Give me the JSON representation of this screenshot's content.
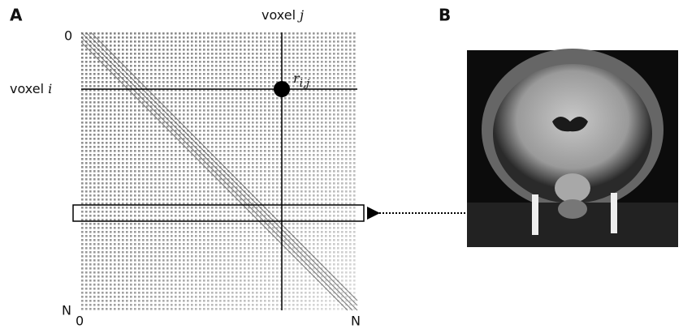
{
  "panel_a": {
    "label": "A",
    "column_label": {
      "text": "voxel",
      "var": "j"
    },
    "row_label": {
      "text": "voxel",
      "var": "i"
    },
    "top_left": "0",
    "bottom_left": "N",
    "bottom_start": "0",
    "bottom_end": "N",
    "element": {
      "symbol": "r",
      "subscript": "i,j"
    }
  },
  "panel_b": {
    "label": "B"
  }
}
